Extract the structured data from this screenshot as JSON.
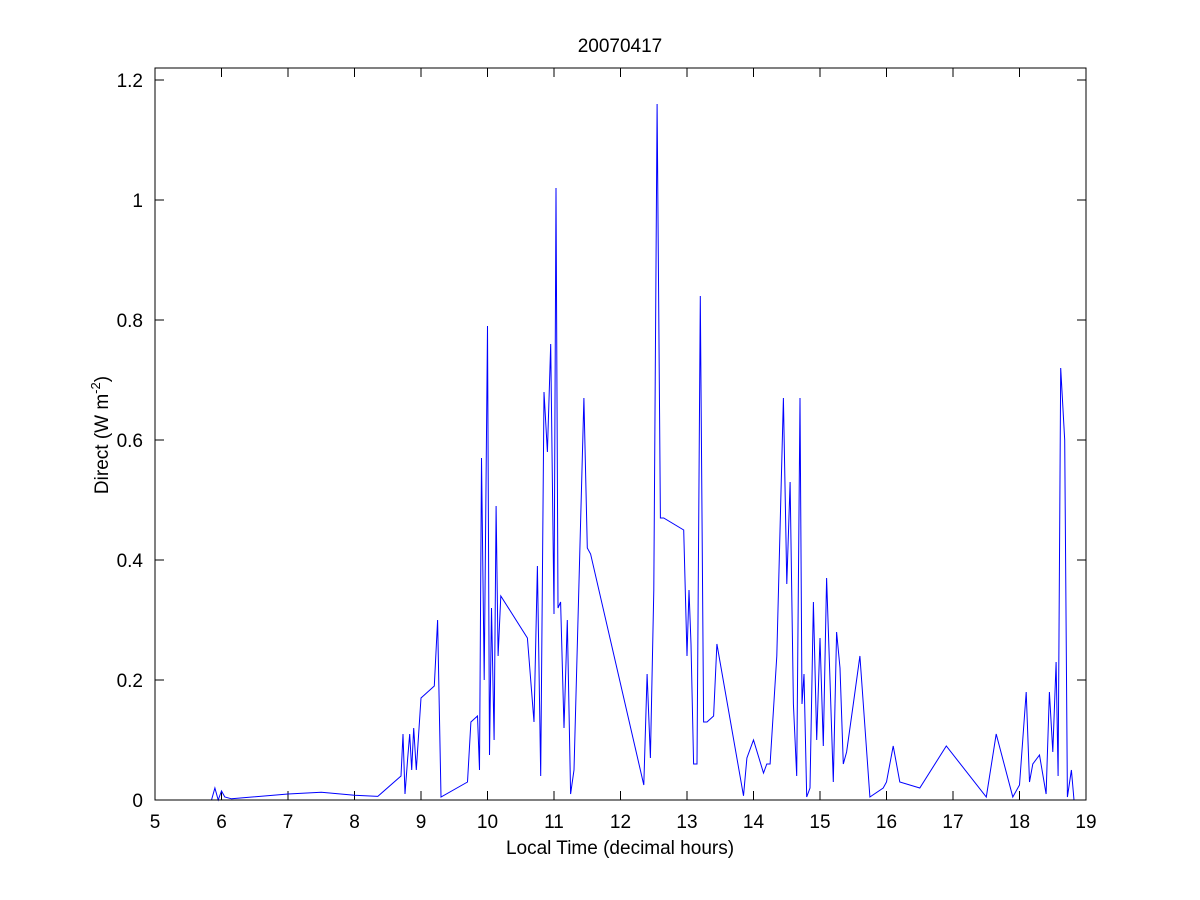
{
  "chart_data": {
    "type": "line",
    "title": "20070417",
    "xlabel": "Local Time (decimal hours)",
    "ylabel": "Direct (W m",
    "ylabel_superscript": "-2",
    "ylabel_suffix": ")",
    "xlim": [
      5,
      19
    ],
    "ylim": [
      0,
      1.22
    ],
    "xticks": [
      5,
      6,
      7,
      8,
      9,
      10,
      11,
      12,
      13,
      14,
      15,
      16,
      17,
      18,
      19
    ],
    "xtick_labels": [
      "5",
      "6",
      "7",
      "8",
      "9",
      "10",
      "11",
      "12",
      "13",
      "14",
      "15",
      "16",
      "17",
      "18",
      "19"
    ],
    "yticks": [
      0,
      0.2,
      0.4,
      0.6,
      0.8,
      1.0,
      1.2
    ],
    "ytick_labels": [
      "0",
      "0.2",
      "0.4",
      "0.6",
      "0.8",
      "1",
      "1.2"
    ],
    "grid": false,
    "line_color": "#0000ff",
    "series": [
      {
        "x": [
          5.7,
          5.85,
          5.9,
          5.95,
          6.0,
          6.05,
          6.15,
          7.0,
          7.5,
          8.0,
          8.35,
          8.7,
          8.73,
          8.76,
          8.8,
          8.83,
          8.86,
          8.89,
          8.93,
          9.0,
          9.2,
          9.25,
          9.3,
          9.7,
          9.75,
          9.85,
          9.88,
          9.91,
          9.95,
          10.0,
          10.03,
          10.06,
          10.1,
          10.13,
          10.16,
          10.2,
          10.6,
          10.7,
          10.75,
          10.8,
          10.85,
          10.9,
          10.95,
          11.0,
          11.03,
          11.06,
          11.1,
          11.15,
          11.2,
          11.25,
          11.3,
          11.45,
          11.5,
          11.55,
          12.35,
          12.4,
          12.45,
          12.5,
          12.55,
          12.6,
          12.65,
          12.95,
          13.0,
          13.03,
          13.06,
          13.1,
          13.15,
          13.2,
          13.25,
          13.3,
          13.4,
          13.45,
          13.85,
          13.9,
          14.0,
          14.15,
          14.2,
          14.25,
          14.35,
          14.45,
          14.5,
          14.55,
          14.6,
          14.65,
          14.7,
          14.73,
          14.76,
          14.8,
          14.85,
          14.9,
          14.95,
          15.0,
          15.05,
          15.1,
          15.15,
          15.2,
          15.25,
          15.3,
          15.35,
          15.4,
          15.5,
          15.6,
          15.75,
          15.95,
          16.0,
          16.1,
          16.2,
          16.5,
          16.9,
          17.5,
          17.65,
          17.9,
          18.0,
          18.1,
          18.15,
          18.2,
          18.3,
          18.4,
          18.45,
          18.5,
          18.55,
          18.58,
          18.62,
          18.68,
          18.72,
          18.78,
          18.82
        ],
        "y": [
          0.0,
          0.0,
          0.02,
          0.0,
          0.015,
          0.005,
          0.002,
          0.01,
          0.013,
          0.008,
          0.006,
          0.04,
          0.11,
          0.01,
          0.07,
          0.11,
          0.05,
          0.12,
          0.05,
          0.17,
          0.19,
          0.3,
          0.005,
          0.03,
          0.13,
          0.14,
          0.05,
          0.57,
          0.2,
          0.79,
          0.075,
          0.32,
          0.1,
          0.49,
          0.24,
          0.34,
          0.27,
          0.13,
          0.39,
          0.04,
          0.68,
          0.58,
          0.76,
          0.31,
          1.02,
          0.32,
          0.33,
          0.12,
          0.3,
          0.01,
          0.05,
          0.67,
          0.42,
          0.41,
          0.025,
          0.21,
          0.07,
          0.35,
          1.16,
          0.47,
          0.47,
          0.45,
          0.24,
          0.35,
          0.26,
          0.06,
          0.06,
          0.84,
          0.13,
          0.13,
          0.14,
          0.26,
          0.007,
          0.07,
          0.1,
          0.045,
          0.06,
          0.06,
          0.24,
          0.67,
          0.36,
          0.53,
          0.16,
          0.04,
          0.67,
          0.16,
          0.21,
          0.005,
          0.02,
          0.33,
          0.1,
          0.27,
          0.09,
          0.37,
          0.2,
          0.03,
          0.28,
          0.22,
          0.06,
          0.08,
          0.16,
          0.24,
          0.005,
          0.02,
          0.03,
          0.09,
          0.03,
          0.02,
          0.09,
          0.005,
          0.11,
          0.005,
          0.025,
          0.18,
          0.03,
          0.06,
          0.075,
          0.01,
          0.18,
          0.08,
          0.23,
          0.04,
          0.72,
          0.6,
          0.005,
          0.05,
          0.0
        ]
      }
    ]
  }
}
